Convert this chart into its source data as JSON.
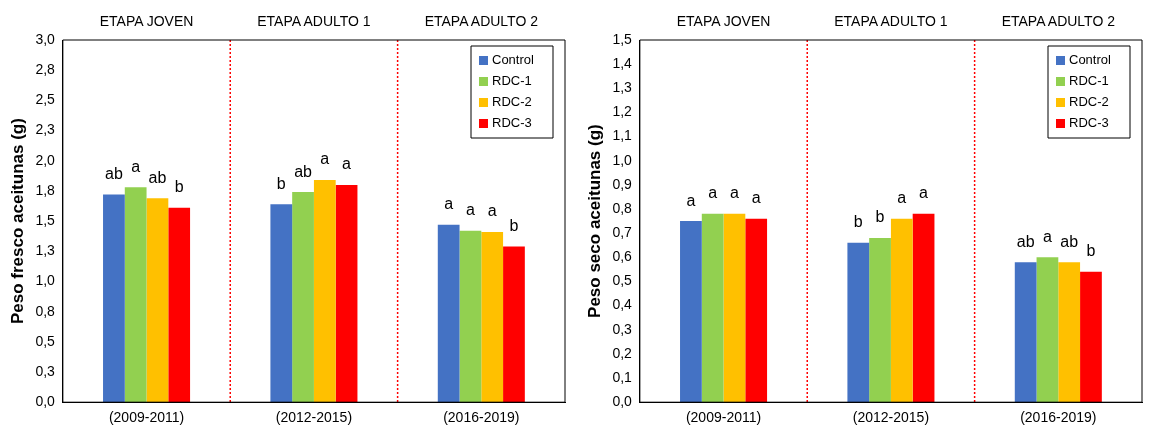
{
  "chart_data": [
    {
      "type": "bar",
      "ylabel": "Peso fresco aceitunas (g)",
      "categories": [
        "(2009-2011)",
        "(2012-2015)",
        "(2016-2019)"
      ],
      "series": [
        {
          "name": "Control",
          "color": "#4472c4",
          "values": [
            1.72,
            1.64,
            1.47
          ],
          "value_labels": [
            "ab",
            "b",
            "a"
          ]
        },
        {
          "name": "RDC-1",
          "color": "#92d050",
          "values": [
            1.78,
            1.74,
            1.42
          ],
          "value_labels": [
            "a",
            "ab",
            "a"
          ]
        },
        {
          "name": "RDC-2",
          "color": "#ffc000",
          "values": [
            1.69,
            1.84,
            1.41
          ],
          "value_labels": [
            "ab",
            "a",
            "a"
          ]
        },
        {
          "name": "RDC-3",
          "color": "#ff0000",
          "values": [
            1.61,
            1.8,
            1.29
          ],
          "value_labels": [
            "b",
            "a",
            "b"
          ]
        }
      ],
      "ylim": [
        0,
        3
      ],
      "yticks": [
        {
          "value": 0,
          "label": "0,0"
        },
        {
          "value": 0.25,
          "label": "0,3"
        },
        {
          "value": 0.5,
          "label": "0,5"
        },
        {
          "value": 0.75,
          "label": "0,8"
        },
        {
          "value": 1,
          "label": "1,0"
        },
        {
          "value": 1.25,
          "label": "1,3"
        },
        {
          "value": 1.5,
          "label": "1,5"
        },
        {
          "value": 1.75,
          "label": "1,8"
        },
        {
          "value": 2,
          "label": "2,0"
        },
        {
          "value": 2.25,
          "label": "2,3"
        },
        {
          "value": 2.5,
          "label": "2,5"
        },
        {
          "value": 2.75,
          "label": "2,8"
        },
        {
          "value": 3,
          "label": "3,0"
        }
      ],
      "annotations": [
        "ETAPA JOVEN",
        "ETAPA ADULTO 1",
        "ETAPA ADULTO 2"
      ],
      "legend": "top right",
      "grid": false
    },
    {
      "type": "bar",
      "ylabel": "Peso seco aceitunas (g)",
      "categories": [
        "(2009-2011)",
        "(2012-2015)",
        "(2016-2019)"
      ],
      "series": [
        {
          "name": "Control",
          "color": "#4472c4",
          "values": [
            0.75,
            0.66,
            0.58
          ],
          "value_labels": [
            "a",
            "b",
            "ab"
          ]
        },
        {
          "name": "RDC-1",
          "color": "#92d050",
          "values": [
            0.78,
            0.68,
            0.6
          ],
          "value_labels": [
            "a",
            "b",
            "a"
          ]
        },
        {
          "name": "RDC-2",
          "color": "#ffc000",
          "values": [
            0.78,
            0.76,
            0.58
          ],
          "value_labels": [
            "a",
            "a",
            "ab"
          ]
        },
        {
          "name": "RDC-3",
          "color": "#ff0000",
          "values": [
            0.76,
            0.78,
            0.54
          ],
          "value_labels": [
            "a",
            "a",
            "b"
          ]
        }
      ],
      "ylim": [
        0,
        1.5
      ],
      "yticks": [
        {
          "value": 0,
          "label": "0,0"
        },
        {
          "value": 0.1,
          "label": "0,1"
        },
        {
          "value": 0.2,
          "label": "0,2"
        },
        {
          "value": 0.3,
          "label": "0,3"
        },
        {
          "value": 0.4,
          "label": "0,4"
        },
        {
          "value": 0.5,
          "label": "0,5"
        },
        {
          "value": 0.6,
          "label": "0,6"
        },
        {
          "value": 0.7,
          "label": "0,7"
        },
        {
          "value": 0.8,
          "label": "0,8"
        },
        {
          "value": 0.9,
          "label": "0,9"
        },
        {
          "value": 1,
          "label": "1,0"
        },
        {
          "value": 1.1,
          "label": "1,1"
        },
        {
          "value": 1.2,
          "label": "1,2"
        },
        {
          "value": 1.3,
          "label": "1,3"
        },
        {
          "value": 1.4,
          "label": "1,4"
        },
        {
          "value": 1.5,
          "label": "1,5"
        }
      ],
      "annotations": [
        "ETAPA JOVEN",
        "ETAPA ADULTO 1",
        "ETAPA ADULTO 2"
      ],
      "legend": "top right",
      "grid": false
    }
  ]
}
